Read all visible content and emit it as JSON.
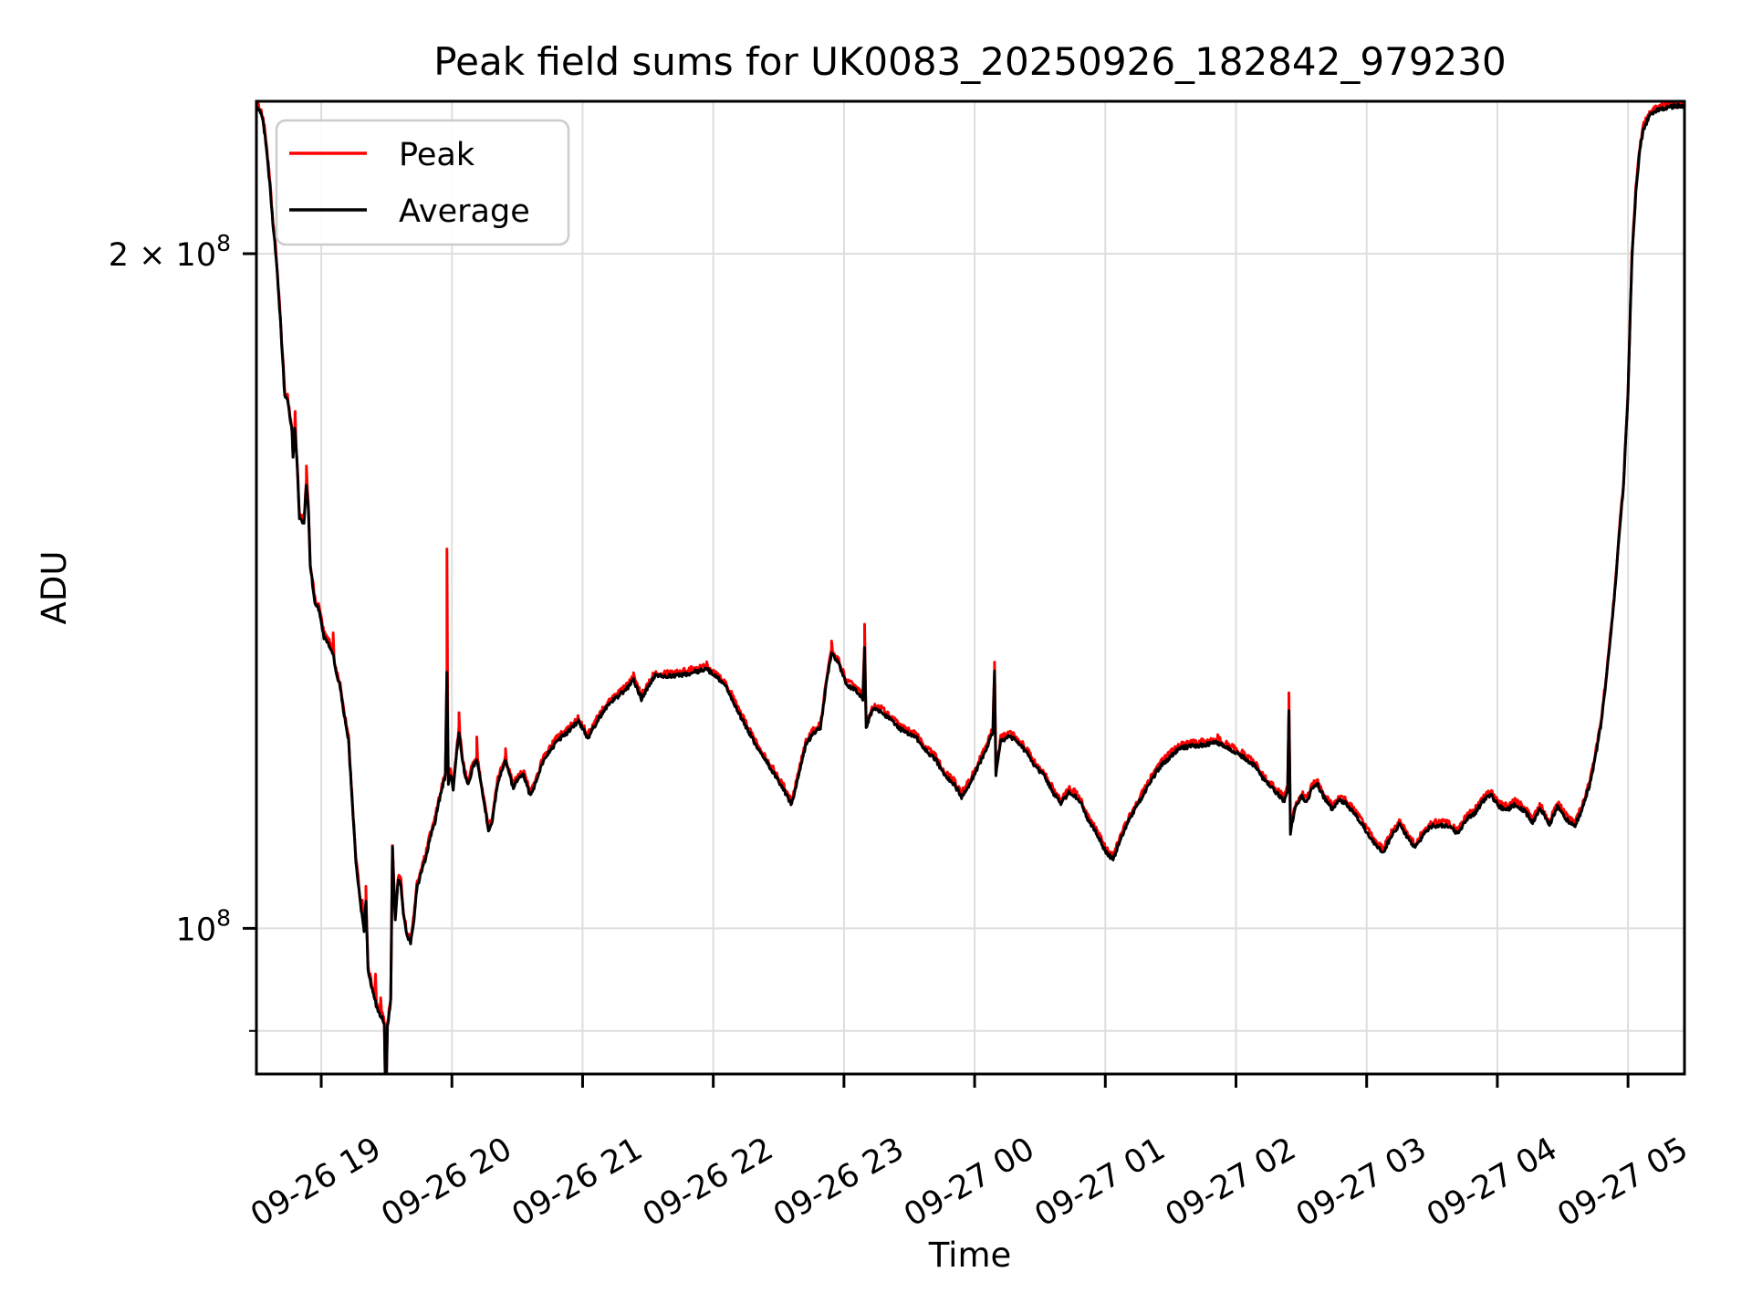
{
  "chart_data": {
    "type": "line",
    "title": "Peak field sums for UK0083_20250926_182842_979230",
    "xlabel": "Time",
    "ylabel": "ADU",
    "yscale": "log",
    "grid": true,
    "background": "#ffffff",
    "grid_color": "#dedede",
    "spine_color": "#000000",
    "xlim_hours": [
      18.504,
      29.432
    ],
    "ylim": [
      86100000,
      233900000
    ],
    "x_ticks": [
      {
        "t": 19,
        "label": "09-26 19"
      },
      {
        "t": 20,
        "label": "09-26 20"
      },
      {
        "t": 21,
        "label": "09-26 21"
      },
      {
        "t": 22,
        "label": "09-26 22"
      },
      {
        "t": 23,
        "label": "09-26 23"
      },
      {
        "t": 24,
        "label": "09-27 00"
      },
      {
        "t": 25,
        "label": "09-27 01"
      },
      {
        "t": 26,
        "label": "09-27 02"
      },
      {
        "t": 27,
        "label": "09-27 03"
      },
      {
        "t": 28,
        "label": "09-27 04"
      },
      {
        "t": 29,
        "label": "09-27 05"
      }
    ],
    "y_ticks": [
      {
        "value": 200000000,
        "base": "2 × 10",
        "exp": "8"
      },
      {
        "value": 100000000,
        "base": "10",
        "exp": "8"
      }
    ],
    "y_minor_ticks": [
      90000000
    ],
    "legend": {
      "position": "upper-left",
      "entries": [
        {
          "label": "Peak",
          "color": "#ff0000"
        },
        {
          "label": "Average",
          "color": "#000000"
        }
      ]
    },
    "points_scale": 100000000.0,
    "series": [
      {
        "name": "Peak",
        "color": "#ff0000",
        "derived_from": "Average",
        "ratio": 1.0035,
        "spikes": [
          [
            18.8,
            1.697
          ],
          [
            18.887,
            1.603
          ],
          [
            19.091,
            1.357
          ],
          [
            19.315,
            1.03
          ],
          [
            19.342,
            1.044
          ],
          [
            19.415,
            0.952
          ],
          [
            19.455,
            0.93
          ],
          [
            19.962,
            1.473
          ],
          [
            20.054,
            1.248
          ],
          [
            20.19,
            1.218
          ],
          [
            20.41,
            1.205
          ],
          [
            21.39,
            1.3
          ],
          [
            21.95,
            1.317
          ],
          [
            22.905,
            1.34
          ],
          [
            23.158,
            1.366
          ],
          [
            24.152,
            1.315
          ],
          [
            25.86,
            1.221
          ],
          [
            26.405,
            1.272
          ],
          [
            27.93,
            1.153
          ]
        ]
      },
      {
        "name": "Average",
        "color": "#000000",
        "points": [
          [
            18.505,
            2.32
          ],
          [
            18.53,
            2.316
          ],
          [
            18.555,
            2.292
          ],
          [
            18.58,
            2.232
          ],
          [
            18.605,
            2.152
          ],
          [
            18.63,
            2.062
          ],
          [
            18.655,
            1.992
          ],
          [
            18.686,
            1.871
          ],
          [
            18.703,
            1.8
          ],
          [
            18.721,
            1.726
          ],
          [
            18.742,
            1.722
          ],
          [
            18.76,
            1.69
          ],
          [
            18.777,
            1.664
          ],
          [
            18.784,
            1.62
          ],
          [
            18.798,
            1.672
          ],
          [
            18.819,
            1.596
          ],
          [
            18.833,
            1.523
          ],
          [
            18.868,
            1.517
          ],
          [
            18.887,
            1.578
          ],
          [
            18.902,
            1.538
          ],
          [
            18.916,
            1.451
          ],
          [
            18.951,
            1.398
          ],
          [
            18.986,
            1.385
          ],
          [
            19.021,
            1.349
          ],
          [
            19.06,
            1.338
          ],
          [
            19.091,
            1.325
          ],
          [
            19.112,
            1.3
          ],
          [
            19.14,
            1.285
          ],
          [
            19.175,
            1.245
          ],
          [
            19.209,
            1.212
          ],
          [
            19.24,
            1.13
          ],
          [
            19.265,
            1.072
          ],
          [
            19.3,
            1.025
          ],
          [
            19.328,
            0.998
          ],
          [
            19.342,
            1.026
          ],
          [
            19.358,
            0.958
          ],
          [
            19.38,
            0.945
          ],
          [
            19.4,
            0.935
          ],
          [
            19.425,
            0.922
          ],
          [
            19.45,
            0.915
          ],
          [
            19.472,
            0.911
          ],
          [
            19.483,
            0.905
          ],
          [
            19.489,
            0.858
          ],
          [
            19.494,
            0.788
          ],
          [
            19.5,
            0.862
          ],
          [
            19.507,
            0.905
          ],
          [
            19.52,
            0.916
          ],
          [
            19.532,
            0.928
          ],
          [
            19.545,
            1.088
          ],
          [
            19.556,
            1.042
          ],
          [
            19.567,
            1.008
          ],
          [
            19.59,
            1.053
          ],
          [
            19.61,
            1.046
          ],
          [
            19.628,
            1.015
          ],
          [
            19.655,
            0.992
          ],
          [
            19.684,
            0.986
          ],
          [
            19.71,
            1.01
          ],
          [
            19.73,
            1.04
          ],
          [
            19.77,
            1.062
          ],
          [
            19.8,
            1.075
          ],
          [
            19.835,
            1.098
          ],
          [
            19.87,
            1.115
          ],
          [
            19.9,
            1.138
          ],
          [
            19.93,
            1.158
          ],
          [
            19.95,
            1.17
          ],
          [
            19.962,
            1.3
          ],
          [
            19.973,
            1.16
          ],
          [
            19.99,
            1.172
          ],
          [
            20.01,
            1.155
          ],
          [
            20.032,
            1.19
          ],
          [
            20.054,
            1.225
          ],
          [
            20.08,
            1.19
          ],
          [
            20.1,
            1.17
          ],
          [
            20.125,
            1.158
          ],
          [
            20.155,
            1.178
          ],
          [
            20.19,
            1.19
          ],
          [
            20.22,
            1.162
          ],
          [
            20.25,
            1.135
          ],
          [
            20.28,
            1.105
          ],
          [
            20.31,
            1.118
          ],
          [
            20.35,
            1.16
          ],
          [
            20.41,
            1.19
          ],
          [
            20.44,
            1.17
          ],
          [
            20.47,
            1.155
          ],
          [
            20.51,
            1.168
          ],
          [
            20.55,
            1.17
          ],
          [
            20.6,
            1.145
          ],
          [
            20.65,
            1.165
          ],
          [
            20.69,
            1.184
          ],
          [
            20.75,
            1.2
          ],
          [
            20.81,
            1.213
          ],
          [
            20.89,
            1.224
          ],
          [
            20.97,
            1.237
          ],
          [
            21.04,
            1.215
          ],
          [
            21.12,
            1.24
          ],
          [
            21.22,
            1.262
          ],
          [
            21.32,
            1.276
          ],
          [
            21.39,
            1.29
          ],
          [
            21.45,
            1.266
          ],
          [
            21.55,
            1.296
          ],
          [
            21.65,
            1.296
          ],
          [
            21.75,
            1.297
          ],
          [
            21.85,
            1.301
          ],
          [
            21.95,
            1.305
          ],
          [
            22.02,
            1.296
          ],
          [
            22.1,
            1.281
          ],
          [
            22.2,
            1.246
          ],
          [
            22.31,
            1.212
          ],
          [
            22.43,
            1.181
          ],
          [
            22.52,
            1.158
          ],
          [
            22.6,
            1.136
          ],
          [
            22.66,
            1.175
          ],
          [
            22.71,
            1.208
          ],
          [
            22.77,
            1.223
          ],
          [
            22.82,
            1.228
          ],
          [
            22.87,
            1.292
          ],
          [
            22.905,
            1.327
          ],
          [
            22.96,
            1.312
          ],
          [
            23.02,
            1.285
          ],
          [
            23.09,
            1.277
          ],
          [
            23.145,
            1.266
          ],
          [
            23.158,
            1.335
          ],
          [
            23.17,
            1.23
          ],
          [
            23.22,
            1.252
          ],
          [
            23.28,
            1.25
          ],
          [
            23.35,
            1.24
          ],
          [
            23.42,
            1.228
          ],
          [
            23.49,
            1.222
          ],
          [
            23.56,
            1.215
          ],
          [
            23.63,
            1.2
          ],
          [
            23.7,
            1.19
          ],
          [
            23.77,
            1.17
          ],
          [
            23.84,
            1.16
          ],
          [
            23.9,
            1.145
          ],
          [
            23.97,
            1.162
          ],
          [
            24.03,
            1.182
          ],
          [
            24.09,
            1.202
          ],
          [
            24.14,
            1.225
          ],
          [
            24.152,
            1.3
          ],
          [
            24.163,
            1.17
          ],
          [
            24.2,
            1.212
          ],
          [
            24.27,
            1.218
          ],
          [
            24.34,
            1.21
          ],
          [
            24.41,
            1.195
          ],
          [
            24.47,
            1.18
          ],
          [
            24.53,
            1.17
          ],
          [
            24.6,
            1.15
          ],
          [
            24.66,
            1.136
          ],
          [
            24.72,
            1.15
          ],
          [
            24.77,
            1.146
          ],
          [
            24.81,
            1.138
          ],
          [
            24.87,
            1.118
          ],
          [
            24.94,
            1.1
          ],
          [
            25.01,
            1.08
          ],
          [
            25.06,
            1.073
          ],
          [
            25.12,
            1.098
          ],
          [
            25.2,
            1.122
          ],
          [
            25.31,
            1.153
          ],
          [
            25.41,
            1.179
          ],
          [
            25.49,
            1.192
          ],
          [
            25.57,
            1.203
          ],
          [
            25.67,
            1.206
          ],
          [
            25.77,
            1.208
          ],
          [
            25.86,
            1.21
          ],
          [
            25.96,
            1.202
          ],
          [
            26.06,
            1.192
          ],
          [
            26.14,
            1.182
          ],
          [
            26.22,
            1.164
          ],
          [
            26.31,
            1.149
          ],
          [
            26.37,
            1.14
          ],
          [
            26.395,
            1.152
          ],
          [
            26.405,
            1.25
          ],
          [
            26.417,
            1.103
          ],
          [
            26.45,
            1.13
          ],
          [
            26.5,
            1.146
          ],
          [
            26.54,
            1.138
          ],
          [
            26.58,
            1.154
          ],
          [
            26.62,
            1.16
          ],
          [
            26.68,
            1.142
          ],
          [
            26.74,
            1.13
          ],
          [
            26.79,
            1.141
          ],
          [
            26.84,
            1.138
          ],
          [
            26.89,
            1.128
          ],
          [
            26.96,
            1.114
          ],
          [
            27.03,
            1.097
          ],
          [
            27.09,
            1.086
          ],
          [
            27.13,
            1.082
          ],
          [
            27.19,
            1.1
          ],
          [
            27.25,
            1.112
          ],
          [
            27.31,
            1.099
          ],
          [
            27.37,
            1.086
          ],
          [
            27.43,
            1.1
          ],
          [
            27.49,
            1.11
          ],
          [
            27.56,
            1.112
          ],
          [
            27.63,
            1.11
          ],
          [
            27.7,
            1.102
          ],
          [
            27.76,
            1.118
          ],
          [
            27.83,
            1.126
          ],
          [
            27.89,
            1.14
          ],
          [
            27.95,
            1.147
          ],
          [
            28.01,
            1.133
          ],
          [
            28.08,
            1.13
          ],
          [
            28.14,
            1.136
          ],
          [
            28.21,
            1.128
          ],
          [
            28.27,
            1.115
          ],
          [
            28.33,
            1.131
          ],
          [
            28.4,
            1.112
          ],
          [
            28.46,
            1.134
          ],
          [
            28.53,
            1.118
          ],
          [
            28.59,
            1.11
          ],
          [
            28.65,
            1.13
          ],
          [
            28.71,
            1.161
          ],
          [
            28.75,
            1.192
          ],
          [
            28.79,
            1.23
          ],
          [
            28.83,
            1.285
          ],
          [
            28.87,
            1.355
          ],
          [
            28.905,
            1.425
          ],
          [
            28.935,
            1.505
          ],
          [
            28.965,
            1.575
          ],
          [
            29.0,
            1.73
          ],
          [
            29.03,
            1.99
          ],
          [
            29.06,
            2.13
          ],
          [
            29.09,
            2.225
          ],
          [
            29.12,
            2.275
          ],
          [
            29.17,
            2.306
          ],
          [
            29.24,
            2.32
          ],
          [
            29.35,
            2.327
          ],
          [
            29.432,
            2.328
          ]
        ]
      }
    ],
    "style": {
      "noise_amp_average": 0.0022,
      "noise_amp_peak": 0.0032,
      "noise_seed": 1234,
      "sample_step_hours": 0.0055
    }
  }
}
